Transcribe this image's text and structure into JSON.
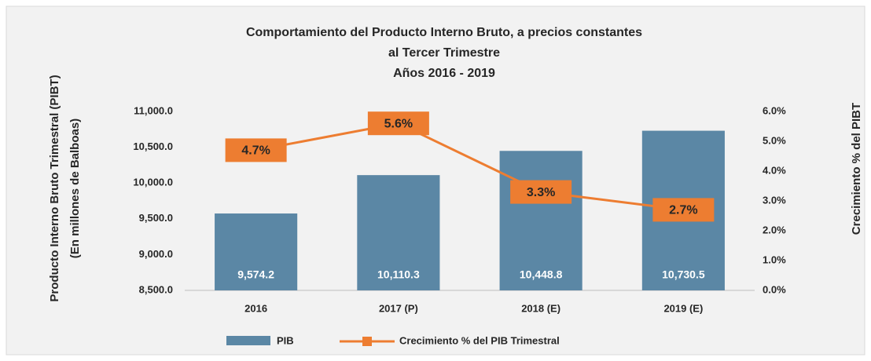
{
  "chart_data": {
    "type": "bar",
    "title": [
      "Comportamiento del Producto Interno Bruto, a precios constantes",
      "al Tercer Trimestre",
      "Años 2016 - 2019"
    ],
    "ylabel": [
      "Producto Interno Bruto Trimestral (PIBT)",
      "(En millones de Balboas)"
    ],
    "y2label": "Crecimiento % del PIBT",
    "categories": [
      "2016",
      "2017 (P)",
      "2018 (E)",
      "2019 (E)"
    ],
    "series": [
      {
        "name": "PIB",
        "type": "bar",
        "color": "#5b87a5",
        "values": [
          9574.2,
          10110.3,
          10448.8,
          10730.5
        ],
        "value_labels": [
          "9,574.2",
          "10,110.3",
          "10,448.8",
          "10,730.5"
        ]
      },
      {
        "name": "Crecimiento % del PIB Trimestral",
        "type": "line",
        "axis": "y2",
        "color": "#ed7d31",
        "values": [
          4.7,
          5.6,
          3.3,
          2.7
        ],
        "value_labels": [
          "4.7%",
          "5.6%",
          "3.3%",
          "2.7%"
        ]
      }
    ],
    "ylim": [
      8500,
      11000
    ],
    "yticks": [
      {
        "value": 8500,
        "label": "8,500.0"
      },
      {
        "value": 9000,
        "label": "9,000.0"
      },
      {
        "value": 9500,
        "label": "9,500.0"
      },
      {
        "value": 10000,
        "label": "10,000.0"
      },
      {
        "value": 10500,
        "label": "10,500.0"
      },
      {
        "value": 11000,
        "label": "11,000.0"
      }
    ],
    "y2lim": [
      0,
      6
    ],
    "y2ticks": [
      {
        "value": 0,
        "label": "0.0%"
      },
      {
        "value": 1,
        "label": "1.0%"
      },
      {
        "value": 2,
        "label": "2.0%"
      },
      {
        "value": 3,
        "label": "3.0%"
      },
      {
        "value": 4,
        "label": "4.0%"
      },
      {
        "value": 5,
        "label": "5.0%"
      },
      {
        "value": 6,
        "label": "6.0%"
      }
    ]
  }
}
